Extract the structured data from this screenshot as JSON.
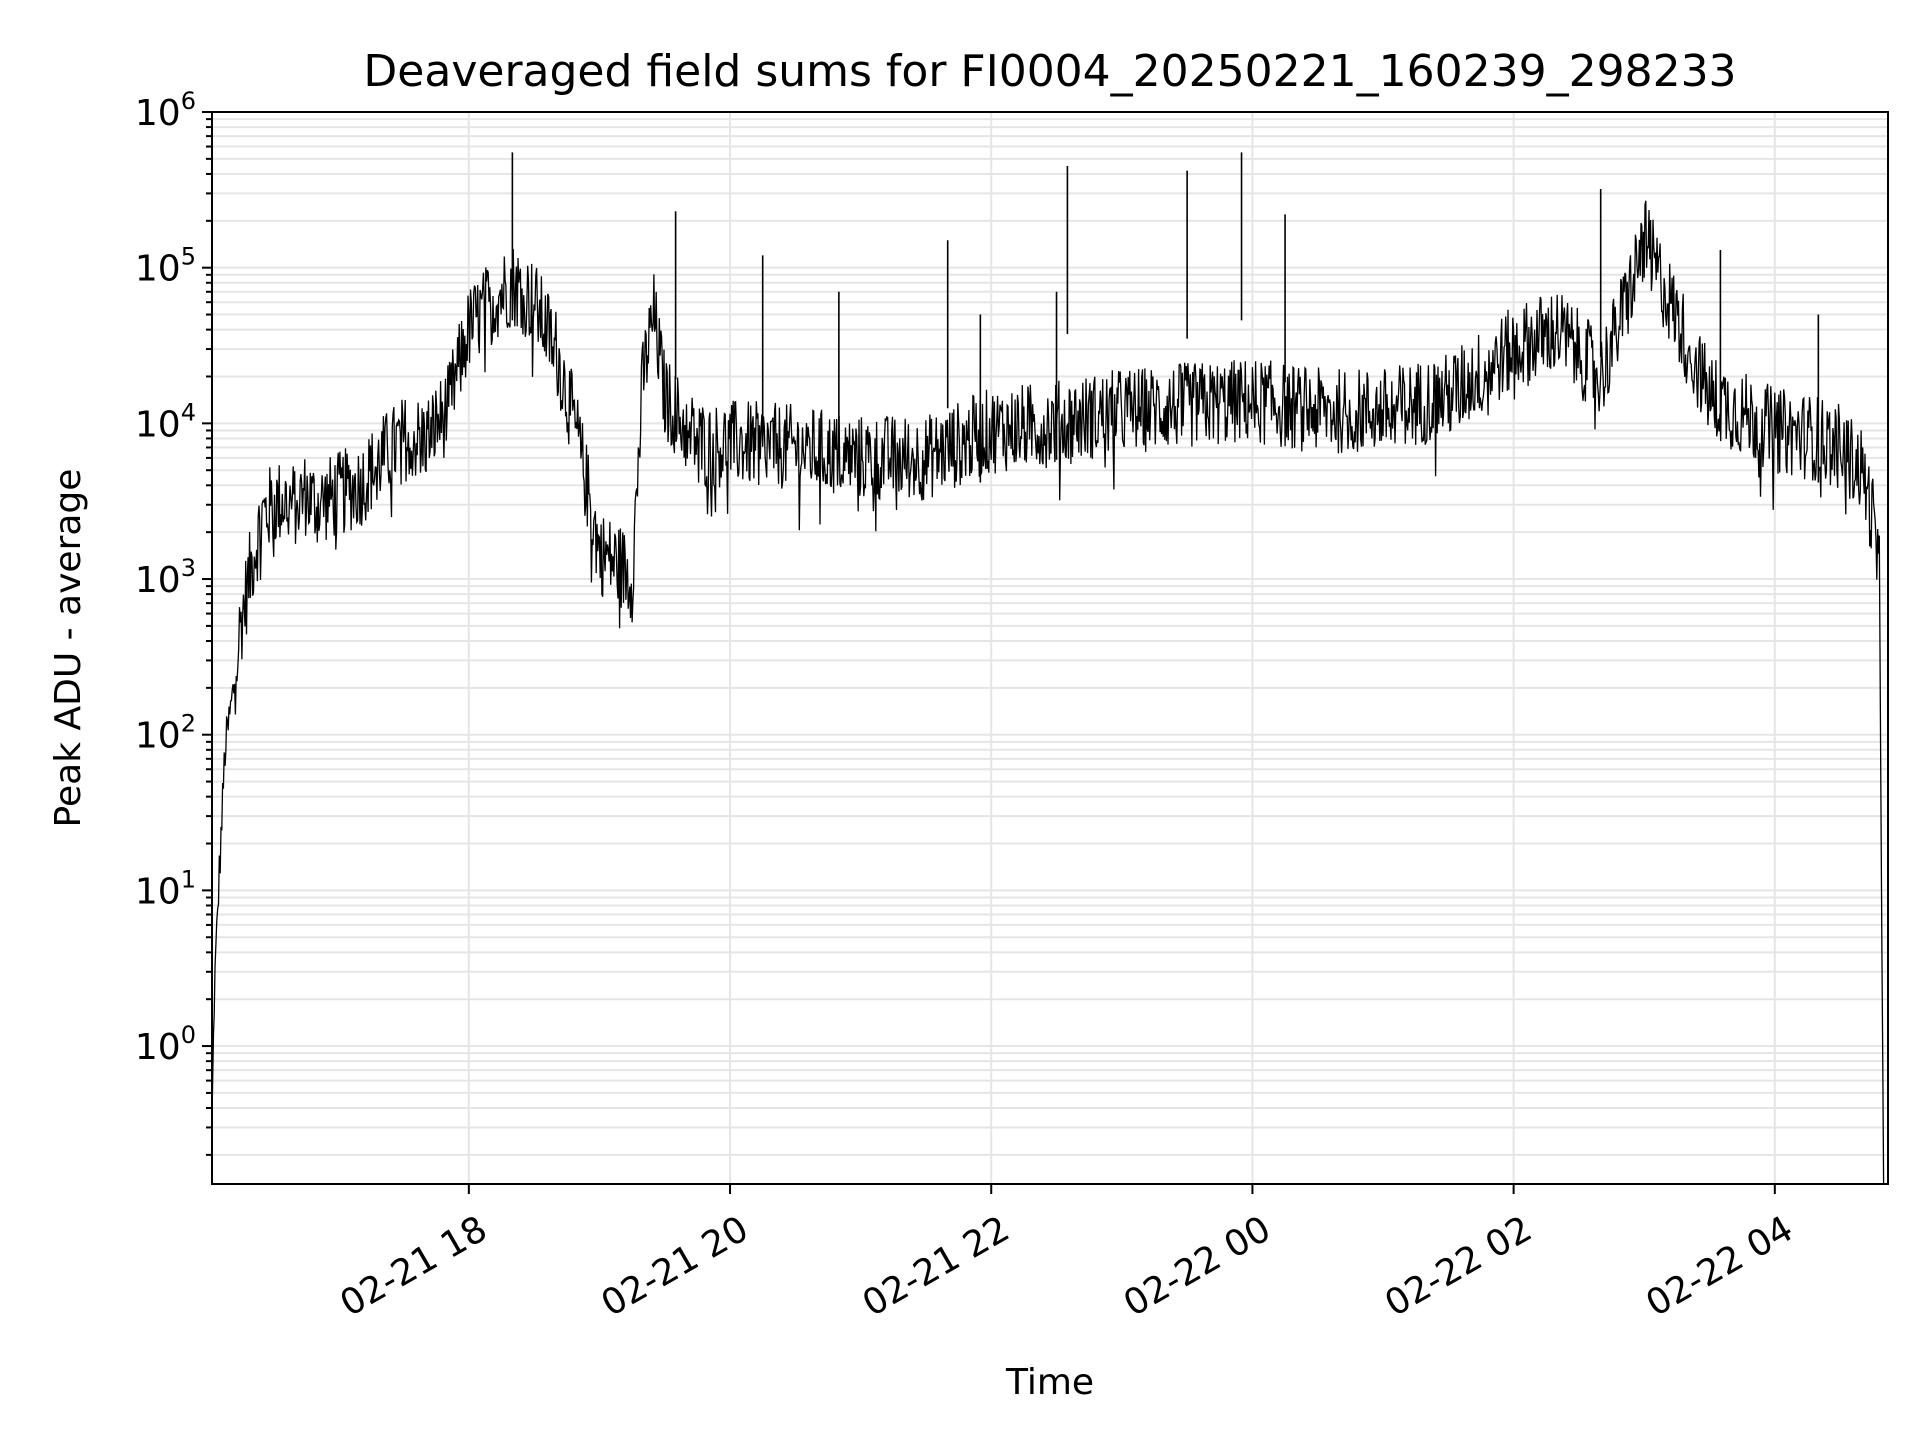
{
  "chart_data": {
    "type": "line",
    "title": "Deaveraged field sums for FI0004_20250221_160239_298233",
    "xlabel": "Time",
    "ylabel": "Peak ADU - average",
    "yscale": "log",
    "ylim": [
      0.13,
      1000000
    ],
    "xlim": [
      "2025-02-21 16:02",
      "2025-02-22 04:52"
    ],
    "grid": true,
    "line_color": "#000000",
    "grid_color": "#e5e5e5",
    "x_ticks": [
      "02-21 18",
      "02-21 20",
      "02-21 22",
      "02-22 00",
      "02-22 02",
      "02-22 04"
    ],
    "y_ticks": [
      {
        "base": "10",
        "exp": "0"
      },
      {
        "base": "10",
        "exp": "1"
      },
      {
        "base": "10",
        "exp": "2"
      },
      {
        "base": "10",
        "exp": "3"
      },
      {
        "base": "10",
        "exp": "4"
      },
      {
        "base": "10",
        "exp": "5"
      },
      {
        "base": "10",
        "exp": "6"
      }
    ],
    "series": [
      {
        "x": [
          "2025-02-21 16:02",
          "2025-02-21 16:03",
          "2025-02-21 16:05",
          "2025-02-21 16:08",
          "2025-02-21 16:12",
          "2025-02-21 16:15",
          "2025-02-21 16:20",
          "2025-02-21 16:25",
          "2025-02-21 16:30",
          "2025-02-21 16:35",
          "2025-02-21 16:40",
          "2025-02-21 16:45",
          "2025-02-21 16:50",
          "2025-02-21 17:00",
          "2025-02-21 17:10",
          "2025-02-21 17:20",
          "2025-02-21 17:30",
          "2025-02-21 17:40",
          "2025-02-21 17:50",
          "2025-02-21 18:00",
          "2025-02-21 18:10",
          "2025-02-21 18:20",
          "2025-02-21 18:30",
          "2025-02-21 18:40",
          "2025-02-21 18:50",
          "2025-02-21 19:00",
          "2025-02-21 19:10",
          "2025-02-21 19:15",
          "2025-02-21 19:20",
          "2025-02-21 19:25",
          "2025-02-21 19:30",
          "2025-02-21 19:40",
          "2025-02-21 19:50",
          "2025-02-21 20:00",
          "2025-02-21 20:30",
          "2025-02-21 21:00",
          "2025-02-21 21:30",
          "2025-02-21 22:00",
          "2025-02-21 22:30",
          "2025-02-21 23:00",
          "2025-02-21 23:30",
          "2025-02-22 00:00",
          "2025-02-22 00:30",
          "2025-02-22 01:00",
          "2025-02-22 01:30",
          "2025-02-22 02:00",
          "2025-02-22 02:20",
          "2025-02-22 02:40",
          "2025-02-22 02:50",
          "2025-02-22 03:00",
          "2025-02-22 03:30",
          "2025-02-22 04:00",
          "2025-02-22 04:20",
          "2025-02-22 04:30",
          "2025-02-22 04:40",
          "2025-02-22 04:45",
          "2025-02-22 04:48",
          "2025-02-22 04:50"
        ],
        "y": [
          0.3,
          2,
          10,
          80,
          200,
          500,
          1200,
          2500,
          3000,
          3200,
          3000,
          3500,
          3000,
          3500,
          4000,
          6000,
          8000,
          8000,
          12000,
          40000,
          60000,
          80000,
          60000,
          30000,
          8000,
          1500,
          1200,
          1000,
          20000,
          50000,
          15000,
          9000,
          7000,
          7500,
          7000,
          6000,
          6000,
          9000,
          10000,
          12000,
          13000,
          14000,
          12000,
          12000,
          15000,
          30000,
          40000,
          20000,
          50000,
          150000,
          15000,
          9000,
          8000,
          7000,
          5000,
          2500,
          1000,
          0.15
        ]
      }
    ],
    "spikes": [
      {
        "x": "2025-02-21 18:20",
        "y": 550000
      },
      {
        "x": "2025-02-21 19:35",
        "y": 230000
      },
      {
        "x": "2025-02-21 20:15",
        "y": 120000
      },
      {
        "x": "2025-02-21 20:50",
        "y": 70000
      },
      {
        "x": "2025-02-21 21:40",
        "y": 150000
      },
      {
        "x": "2025-02-21 21:55",
        "y": 50000
      },
      {
        "x": "2025-02-21 22:30",
        "y": 70000
      },
      {
        "x": "2025-02-21 22:35",
        "y": 450000
      },
      {
        "x": "2025-02-21 23:30",
        "y": 420000
      },
      {
        "x": "2025-02-21 23:55",
        "y": 550000
      },
      {
        "x": "2025-02-22 00:15",
        "y": 220000
      },
      {
        "x": "2025-02-22 02:40",
        "y": 320000
      },
      {
        "x": "2025-02-22 03:35",
        "y": 130000
      },
      {
        "x": "2025-02-22 04:20",
        "y": 50000
      }
    ]
  }
}
